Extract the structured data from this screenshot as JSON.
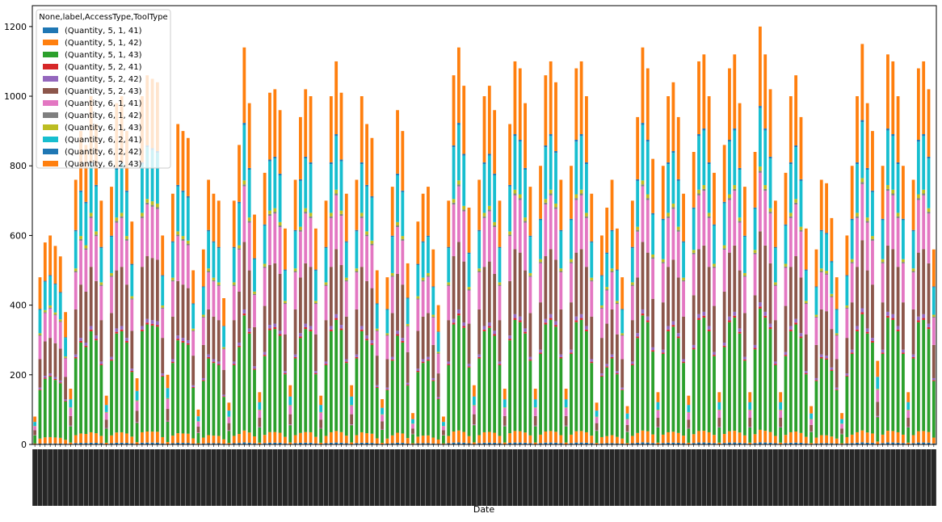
{
  "chart_data": {
    "type": "bar",
    "stacked": true,
    "xlabel": "Date",
    "ylabel": "",
    "title": "",
    "ylim": [
      0,
      1260
    ],
    "yticks": [
      0,
      200,
      400,
      600,
      800,
      1000,
      1200
    ],
    "x_tick_labels_rotated": 90,
    "x_tick_labels_overlapping": true,
    "legend": {
      "title": "None,label,AccessType,ToolType",
      "placement": "top-left",
      "entries": [
        {
          "name": "(Quantity, 5, 1, 41)",
          "color": "#1f77b4"
        },
        {
          "name": "(Quantity, 5, 1, 42)",
          "color": "#ff7f0e"
        },
        {
          "name": "(Quantity, 5, 1, 43)",
          "color": "#2ca02c"
        },
        {
          "name": "(Quantity, 5, 2, 41)",
          "color": "#d62728"
        },
        {
          "name": "(Quantity, 5, 2, 42)",
          "color": "#9467bd"
        },
        {
          "name": "(Quantity, 5, 2, 43)",
          "color": "#8c564b"
        },
        {
          "name": "(Quantity, 6, 1, 41)",
          "color": "#e377c2"
        },
        {
          "name": "(Quantity, 6, 1, 42)",
          "color": "#7f7f7f"
        },
        {
          "name": "(Quantity, 6, 1, 43)",
          "color": "#bcbd22"
        },
        {
          "name": "(Quantity, 6, 2, 41)",
          "color": "#17becf"
        },
        {
          "name": "(Quantity, 6, 2, 42)",
          "color": "#1f77b4"
        },
        {
          "name": "(Quantity, 6, 2, 43)",
          "color": "#ff7f0e"
        }
      ]
    },
    "daily_totals": [
      80,
      480,
      580,
      600,
      570,
      540,
      380,
      160,
      760,
      900,
      860,
      1000,
      920,
      700,
      140,
      740,
      980,
      1000,
      900,
      640,
      190,
      1000,
      1060,
      1050,
      1040,
      600,
      200,
      720,
      920,
      900,
      880,
      500,
      100,
      560,
      760,
      720,
      700,
      420,
      120,
      700,
      860,
      1140,
      980,
      660,
      150,
      780,
      1010,
      1020,
      960,
      620,
      170,
      760,
      940,
      1020,
      1000,
      620,
      140,
      700,
      1000,
      1100,
      1010,
      720,
      170,
      760,
      1000,
      920,
      880,
      500,
      130,
      480,
      740,
      960,
      900,
      520,
      90,
      640,
      720,
      740,
      560,
      400,
      80,
      700,
      1060,
      1140,
      1030,
      680,
      170,
      760,
      1000,
      1030,
      960,
      700,
      160,
      920,
      1100,
      1080,
      980,
      740,
      160,
      800,
      1060,
      1100,
      1040,
      760,
      160,
      800,
      1080,
      1100,
      1000,
      720,
      120,
      600,
      680,
      760,
      620,
      480,
      110,
      700,
      940,
      1140,
      1080,
      820,
      150,
      800,
      1000,
      1040,
      940,
      720,
      140,
      840,
      1100,
      1120,
      1000,
      780,
      150,
      860,
      1080,
      1120,
      980,
      740,
      150,
      840,
      1200,
      1120,
      1020,
      700,
      150,
      780,
      1000,
      1060,
      940,
      620,
      110,
      560,
      760,
      750,
      650,
      480,
      90,
      600,
      800,
      1000,
      1150,
      980,
      900,
      240,
      800,
      1120,
      1100,
      1000,
      800,
      150,
      760,
      1080,
      1100,
      1020,
      560
    ],
    "stack_composition": {
      "(Quantity, 5, 1, 41)": 0.005,
      "(Quantity, 5, 1, 42)": 0.03,
      "(Quantity, 5, 1, 43)": 0.29,
      "(Quantity, 5, 2, 41)": 0.005,
      "(Quantity, 5, 2, 42)": 0.01,
      "(Quantity, 5, 2, 43)": 0.17,
      "(Quantity, 6, 1, 41)": 0.14,
      "(Quantity, 6, 1, 42)": 0.005,
      "(Quantity, 6, 1, 43)": 0.01,
      "(Quantity, 6, 2, 41)": 0.14,
      "(Quantity, 6, 2, 42)": 0.005,
      "(Quantity, 6, 2, 43)": 0.19
    }
  }
}
